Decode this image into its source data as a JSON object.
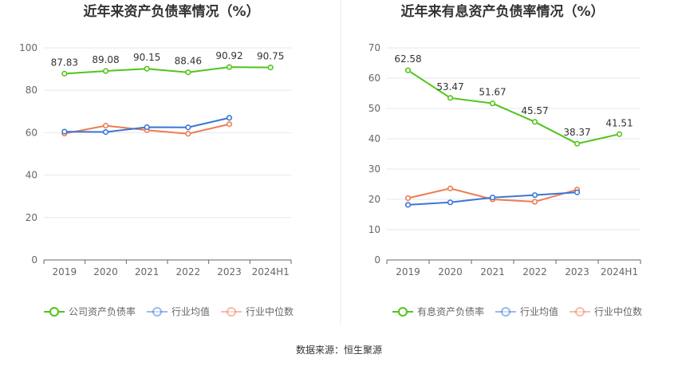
{
  "colors": {
    "green": "#52c41a",
    "blue": "#3a77d6",
    "orange": "#ee7b51",
    "axis": "#666666",
    "grid": "#e6e6f0",
    "divider": "#e8e8e8"
  },
  "source": "数据来源：恒生聚源",
  "chart_data": [
    {
      "type": "line",
      "title": "近年来资产负债率情况（%）",
      "categories": [
        "2019",
        "2020",
        "2021",
        "2022",
        "2023",
        "2024H1"
      ],
      "ylim": [
        0,
        100
      ],
      "yticks": [
        0,
        20,
        40,
        60,
        80,
        100
      ],
      "grid": true,
      "legend_position": "bottom",
      "series": [
        {
          "name": "公司资产负债率",
          "color": "#52c41a",
          "labels": true,
          "values": [
            87.83,
            89.08,
            90.15,
            88.46,
            90.92,
            90.75
          ]
        },
        {
          "name": "行业均值",
          "color": "#3a77d6",
          "labels": false,
          "values": [
            60.5,
            60.3,
            62.6,
            62.5,
            67.0,
            null
          ]
        },
        {
          "name": "行业中位数",
          "color": "#ee7b51",
          "labels": false,
          "values": [
            59.6,
            63.3,
            61.2,
            59.5,
            64.0,
            null
          ]
        }
      ]
    },
    {
      "type": "line",
      "title": "近年来有息资产负债率情况（%）",
      "categories": [
        "2019",
        "2020",
        "2021",
        "2022",
        "2023",
        "2024H1"
      ],
      "ylim": [
        0,
        70
      ],
      "yticks": [
        0,
        10,
        20,
        30,
        40,
        50,
        60,
        70
      ],
      "grid": true,
      "legend_position": "bottom",
      "series": [
        {
          "name": "有息资产负债率",
          "color": "#52c41a",
          "labels": true,
          "values": [
            62.58,
            53.47,
            51.67,
            45.57,
            38.37,
            41.51
          ]
        },
        {
          "name": "行业均值",
          "color": "#3a77d6",
          "labels": false,
          "values": [
            18.2,
            19.0,
            20.6,
            21.4,
            22.3,
            null
          ]
        },
        {
          "name": "行业中位数",
          "color": "#ee7b51",
          "labels": false,
          "values": [
            20.4,
            23.6,
            20.0,
            19.2,
            23.2,
            null
          ]
        }
      ]
    }
  ]
}
